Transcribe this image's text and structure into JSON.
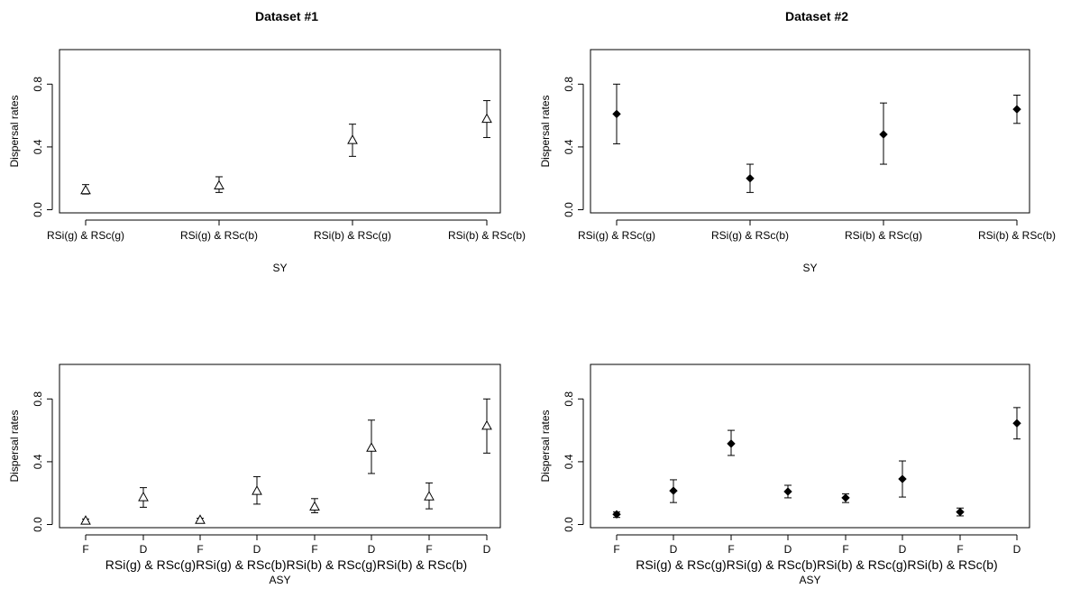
{
  "figure": {
    "col_titles": [
      "Dataset #1",
      "Dataset #2"
    ]
  },
  "chart_data": [
    {
      "type": "scatter",
      "title": "Dataset #1",
      "xlabel": "SY",
      "ylabel": "Dispersal rates",
      "ylim": [
        -0.02,
        1.02
      ],
      "yticks": [
        "0.0",
        "0.4",
        "0.8"
      ],
      "ytick_values": [
        0.0,
        0.4,
        0.8
      ],
      "categories": [
        "RSi(g) & RSc(g)",
        "RSi(g) & RSc(b)",
        "RSi(b) & RSc(g)",
        "RSi(b) & RSc(b)"
      ],
      "marker": "open-triangle",
      "values": [
        0.125,
        0.155,
        0.445,
        0.58
      ],
      "lower": [
        0.1,
        0.11,
        0.34,
        0.46
      ],
      "upper": [
        0.16,
        0.21,
        0.545,
        0.695
      ],
      "grid": false
    },
    {
      "type": "scatter",
      "title": "Dataset #2",
      "xlabel": "SY",
      "ylabel": "Dispersal rates",
      "ylim": [
        -0.02,
        1.02
      ],
      "yticks": [
        "0.0",
        "0.4",
        "0.8"
      ],
      "ytick_values": [
        0.0,
        0.4,
        0.8
      ],
      "categories": [
        "RSi(g) & RSc(g)",
        "RSi(g) & RSc(b)",
        "RSi(b) & RSc(g)",
        "RSi(b) & RSc(b)"
      ],
      "marker": "filled-diamond",
      "values": [
        0.61,
        0.2,
        0.48,
        0.64
      ],
      "lower": [
        0.42,
        0.11,
        0.29,
        0.55
      ],
      "upper": [
        0.8,
        0.29,
        0.68,
        0.73
      ],
      "grid": false
    },
    {
      "type": "scatter",
      "xlabel": "ASY",
      "ylabel": "Dispersal rates",
      "ylim": [
        -0.02,
        1.02
      ],
      "yticks": [
        "0.0",
        "0.4",
        "0.8"
      ],
      "ytick_values": [
        0.0,
        0.4,
        0.8
      ],
      "categories": [
        "F",
        "D",
        "F",
        "D",
        "F",
        "D",
        "F",
        "D"
      ],
      "group_labels": [
        "RSi(g) & RSc(g)",
        "RSi(g) & RSc(b)",
        "RSi(b) & RSc(g)",
        "RSi(b) & RSc(b)"
      ],
      "marker": "open-triangle",
      "values": [
        0.025,
        0.175,
        0.03,
        0.215,
        0.115,
        0.49,
        0.18,
        0.63
      ],
      "lower": [
        0.02,
        0.11,
        0.02,
        0.13,
        0.075,
        0.325,
        0.1,
        0.455
      ],
      "upper": [
        0.035,
        0.235,
        0.04,
        0.305,
        0.165,
        0.665,
        0.265,
        0.8
      ],
      "grid": false
    },
    {
      "type": "scatter",
      "xlabel": "ASY",
      "ylabel": "Dispersal rates",
      "ylim": [
        -0.02,
        1.02
      ],
      "yticks": [
        "0.0",
        "0.4",
        "0.8"
      ],
      "ytick_values": [
        0.0,
        0.4,
        0.8
      ],
      "categories": [
        "F",
        "D",
        "F",
        "D",
        "F",
        "D",
        "F",
        "D"
      ],
      "group_labels": [
        "RSi(g) & RSc(g)",
        "RSi(g) & RSc(b)",
        "RSi(b) & RSc(g)",
        "RSi(b) & RSc(b)"
      ],
      "marker": "filled-diamond",
      "values": [
        0.065,
        0.215,
        0.515,
        0.21,
        0.17,
        0.29,
        0.08,
        0.645
      ],
      "lower": [
        0.045,
        0.14,
        0.44,
        0.17,
        0.14,
        0.175,
        0.055,
        0.545
      ],
      "upper": [
        0.08,
        0.285,
        0.6,
        0.25,
        0.195,
        0.405,
        0.105,
        0.745
      ],
      "grid": false
    }
  ]
}
